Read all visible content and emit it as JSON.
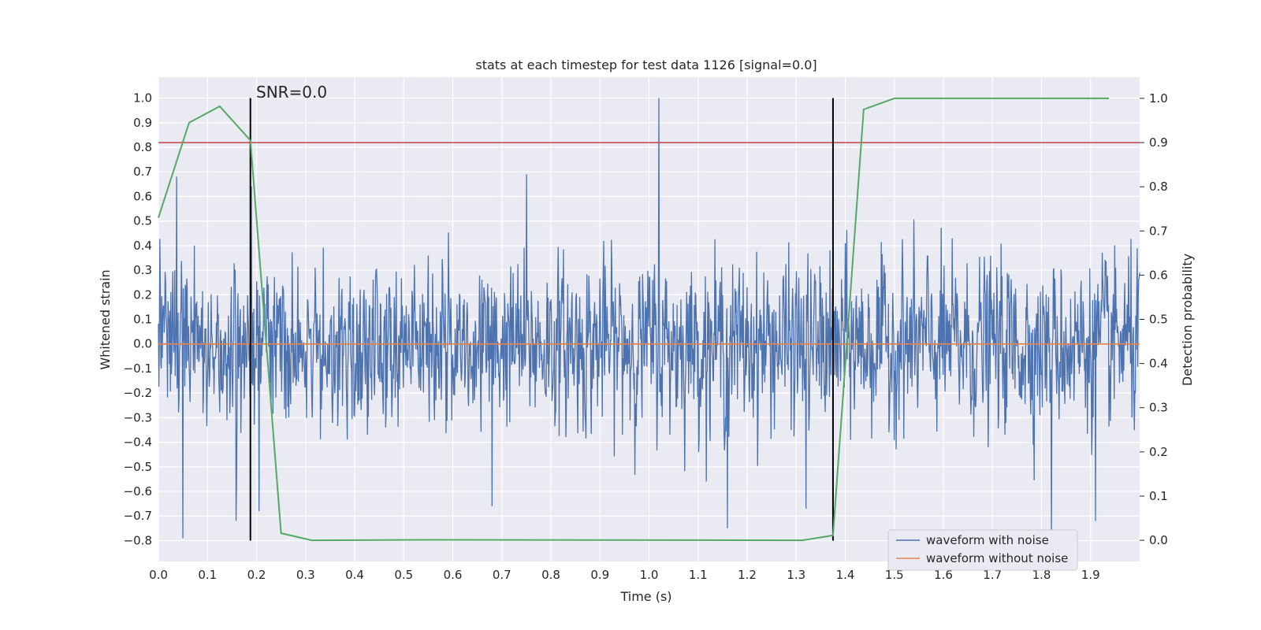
{
  "chart_data": {
    "type": "line",
    "title": "stats at each timestep for test data 1126 [signal=0.0]",
    "xlabel": "Time (s)",
    "ylabel": "Whitened strain",
    "ylabel_right": "Detection probability",
    "xlim": [
      0.0,
      2.0
    ],
    "ylim": [
      -0.885,
      1.085
    ],
    "ylim_right": [
      -0.048,
      1.048
    ],
    "x_ticks": [
      "0.0",
      "0.1",
      "0.2",
      "0.3",
      "0.4",
      "0.5",
      "0.6",
      "0.7",
      "0.8",
      "0.9",
      "1.0",
      "1.1",
      "1.2",
      "1.3",
      "1.4",
      "1.5",
      "1.6",
      "1.7",
      "1.8",
      "1.9"
    ],
    "y_ticks": [
      "1.0",
      "0.9",
      "0.8",
      "0.7",
      "0.6",
      "0.5",
      "0.4",
      "0.3",
      "0.2",
      "0.1",
      "0.0",
      "−0.1",
      "−0.2",
      "−0.3",
      "−0.4",
      "−0.5",
      "−0.6",
      "−0.7",
      "−0.8"
    ],
    "y_ticks_right": [
      "1.0",
      "0.9",
      "0.8",
      "0.7",
      "0.6",
      "0.5",
      "0.4",
      "0.3",
      "0.2",
      "0.1",
      "0.0"
    ],
    "grid": true,
    "legend_position": "bottom-right",
    "annotation": "SNR=0.0",
    "series": [
      {
        "name": "waveform with noise",
        "color": "#4c72b0",
        "axis": "left",
        "description": "dense whitened noise trace, 2048 samples over 0-2 s, mostly within -0.4 to 0.4, peaks near 1.0 at t=1.02",
        "peaks": [
          {
            "x": 0.05,
            "y": -0.79
          },
          {
            "x": 0.037,
            "y": 0.68
          },
          {
            "x": 0.158,
            "y": -0.72
          },
          {
            "x": 0.19,
            "y": 0.64
          },
          {
            "x": 0.205,
            "y": -0.68
          },
          {
            "x": 0.68,
            "y": -0.66
          },
          {
            "x": 0.75,
            "y": 0.69
          },
          {
            "x": 1.02,
            "y": 1.0
          },
          {
            "x": 1.16,
            "y": -0.75
          },
          {
            "x": 1.32,
            "y": -0.67
          },
          {
            "x": 1.82,
            "y": -0.79
          },
          {
            "x": 1.91,
            "y": -0.72
          }
        ]
      },
      {
        "name": "waveform without noise",
        "color": "#dd8452",
        "axis": "left",
        "x": [
          0.0,
          2.0
        ],
        "y": [
          0.0,
          0.0
        ]
      },
      {
        "name": "detection probability",
        "color": "#55a868",
        "axis": "right",
        "x": [
          0.0,
          0.0625,
          0.125,
          0.1875,
          0.25,
          0.3125,
          0.5625,
          1.3125,
          1.375,
          1.4375,
          1.5,
          1.9375
        ],
        "y": [
          0.73,
          0.945,
          0.982,
          0.905,
          0.016,
          0.0,
          0.001,
          0.0,
          0.011,
          0.975,
          1.0,
          1.0
        ]
      }
    ],
    "threshold": {
      "axis": "right",
      "y": 0.9,
      "color": "#c44e52"
    },
    "vlines": [
      {
        "x": 0.1875,
        "y_from": -0.8,
        "y_to": 1.0,
        "color": "#000000"
      },
      {
        "x": 1.375,
        "y_from": -0.8,
        "y_to": 1.0,
        "color": "#000000"
      }
    ]
  }
}
